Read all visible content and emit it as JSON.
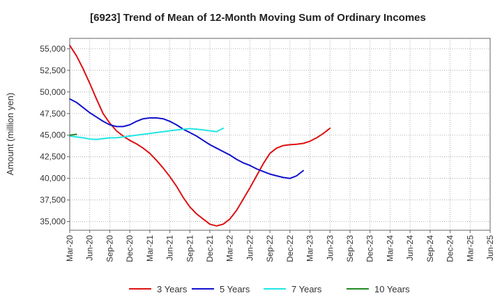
{
  "chart_data": {
    "type": "line",
    "title": "[6923]  Trend of Mean of 12-Month Moving Sum of Ordinary Incomes",
    "xlabel": "",
    "ylabel": "Amount (million yen)",
    "x_ticks": [
      "Mar-20",
      "Jun-20",
      "Sep-20",
      "Dec-20",
      "Mar-21",
      "Jun-21",
      "Sep-21",
      "Dec-21",
      "Mar-22",
      "Jun-22",
      "Sep-22",
      "Dec-22",
      "Mar-23",
      "Jun-23",
      "Sep-23",
      "Dec-23",
      "Mar-24",
      "Jun-24",
      "Sep-24",
      "Dec-24",
      "Mar-25",
      "Jun-25"
    ],
    "y_ticks": [
      35000,
      37500,
      40000,
      42500,
      45000,
      47500,
      50000,
      52500,
      55000
    ],
    "y_tick_labels": [
      "35,000",
      "37,500",
      "40,000",
      "42,500",
      "45,000",
      "47,500",
      "50,000",
      "52,500",
      "55,000"
    ],
    "ylim": [
      34000,
      56200
    ],
    "grid": true,
    "legend_position": "bottom",
    "series": [
      {
        "name": "3 Years",
        "color": "#dd1111",
        "points": [
          [
            0,
            55400
          ],
          [
            1,
            54200
          ],
          [
            2,
            52700
          ],
          [
            3,
            51000
          ],
          [
            4,
            49200
          ],
          [
            5,
            47500
          ],
          [
            6,
            46400
          ],
          [
            7,
            45500
          ],
          [
            8,
            44900
          ],
          [
            9,
            44400
          ],
          [
            10,
            44000
          ],
          [
            11,
            43500
          ],
          [
            12,
            42900
          ],
          [
            13,
            42100
          ],
          [
            14,
            41200
          ],
          [
            15,
            40200
          ],
          [
            16,
            39100
          ],
          [
            17,
            37800
          ],
          [
            18,
            36700
          ],
          [
            19,
            35900
          ],
          [
            20,
            35300
          ],
          [
            21,
            34700
          ],
          [
            22,
            34500
          ],
          [
            23,
            34700
          ],
          [
            24,
            35300
          ],
          [
            25,
            36300
          ],
          [
            26,
            37600
          ],
          [
            27,
            38900
          ],
          [
            28,
            40300
          ],
          [
            29,
            41700
          ],
          [
            30,
            42900
          ],
          [
            31,
            43500
          ],
          [
            32,
            43800
          ],
          [
            33,
            43900
          ],
          [
            34,
            43950
          ],
          [
            35,
            44050
          ],
          [
            36,
            44300
          ],
          [
            37,
            44700
          ],
          [
            38,
            45200
          ],
          [
            39,
            45800
          ]
        ]
      },
      {
        "name": "5 Years",
        "color": "#1111cc",
        "points": [
          [
            0,
            49200
          ],
          [
            1,
            48800
          ],
          [
            2,
            48200
          ],
          [
            3,
            47600
          ],
          [
            4,
            47100
          ],
          [
            5,
            46600
          ],
          [
            6,
            46200
          ],
          [
            7,
            46000
          ],
          [
            8,
            46000
          ],
          [
            9,
            46200
          ],
          [
            10,
            46600
          ],
          [
            11,
            46900
          ],
          [
            12,
            47000
          ],
          [
            13,
            47000
          ],
          [
            14,
            46900
          ],
          [
            15,
            46600
          ],
          [
            16,
            46200
          ],
          [
            17,
            45700
          ],
          [
            18,
            45300
          ],
          [
            19,
            44900
          ],
          [
            20,
            44400
          ],
          [
            21,
            43900
          ],
          [
            22,
            43500
          ],
          [
            23,
            43100
          ],
          [
            24,
            42700
          ],
          [
            25,
            42200
          ],
          [
            26,
            41800
          ],
          [
            27,
            41500
          ],
          [
            28,
            41100
          ],
          [
            29,
            40800
          ],
          [
            30,
            40500
          ],
          [
            31,
            40300
          ],
          [
            32,
            40100
          ],
          [
            33,
            40000
          ],
          [
            34,
            40300
          ],
          [
            35,
            40900
          ]
        ]
      },
      {
        "name": "7 Years",
        "color": "#22e5e5",
        "points": [
          [
            0,
            44900
          ],
          [
            1,
            44800
          ],
          [
            2,
            44700
          ],
          [
            3,
            44550
          ],
          [
            4,
            44500
          ],
          [
            5,
            44600
          ],
          [
            6,
            44700
          ],
          [
            7,
            44700
          ],
          [
            8,
            44800
          ],
          [
            9,
            44900
          ],
          [
            10,
            45000
          ],
          [
            11,
            45100
          ],
          [
            12,
            45200
          ],
          [
            13,
            45300
          ],
          [
            14,
            45400
          ],
          [
            15,
            45500
          ],
          [
            16,
            45600
          ],
          [
            17,
            45700
          ],
          [
            18,
            45750
          ],
          [
            19,
            45700
          ],
          [
            20,
            45600
          ],
          [
            21,
            45500
          ],
          [
            22,
            45400
          ],
          [
            23,
            45800
          ]
        ]
      },
      {
        "name": "10 Years",
        "color": "#228822",
        "points": [
          [
            0,
            45000
          ],
          [
            1,
            45100
          ]
        ]
      }
    ]
  }
}
